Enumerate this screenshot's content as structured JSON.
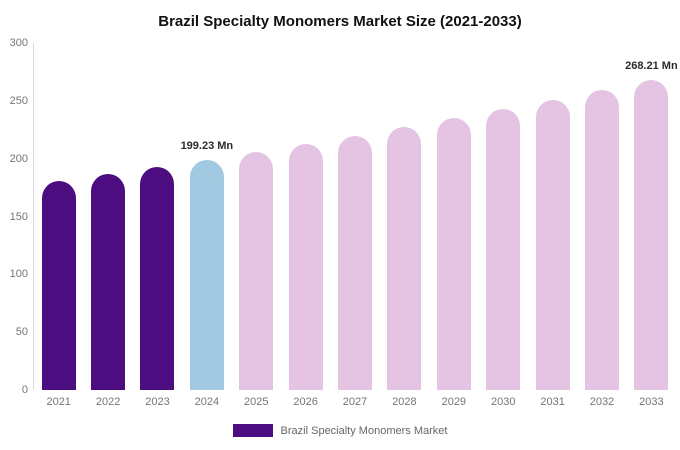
{
  "chart_data": {
    "type": "bar",
    "title": "Brazil Specialty Monomers Market Size (2021-2033)",
    "xlabel": "",
    "ylabel": "",
    "unit": "Mn",
    "categories": [
      "2021",
      "2022",
      "2023",
      "2024",
      "2025",
      "2026",
      "2027",
      "2028",
      "2029",
      "2030",
      "2031",
      "2032",
      "2033"
    ],
    "values": [
      180.4,
      186.4,
      192.8,
      199.23,
      205.9,
      212.8,
      220.0,
      227.4,
      235.0,
      242.9,
      251.1,
      259.5,
      268.21
    ],
    "ylim": [
      0,
      300
    ],
    "yticks": [
      0,
      50,
      100,
      150,
      200,
      250,
      300
    ],
    "grid": false,
    "legend_position": "bottom",
    "bar_colors": [
      "#4b0d80",
      "#4b0d80",
      "#4b0d80",
      "#a1c9e1",
      "#e4c3e3",
      "#e4c3e3",
      "#e4c3e3",
      "#e4c3e3",
      "#e4c3e3",
      "#e4c3e3",
      "#e4c3e3",
      "#e4c3e3",
      "#e4c3e3"
    ],
    "colors": {
      "historical": "#4b0d80",
      "current_year": "#a1c9e1",
      "forecast": "#e4c3e3"
    },
    "annotations": [
      {
        "category": "2024",
        "text": "199.23 Mn"
      },
      {
        "category": "2033",
        "text": "268.21 Mn"
      }
    ],
    "legend": {
      "label": "Brazil Specialty Monomers Market",
      "swatch_color": "#4b0d80"
    }
  }
}
